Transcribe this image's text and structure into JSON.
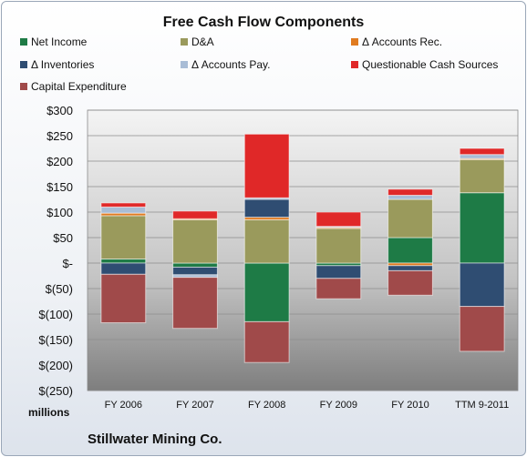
{
  "chart_data": {
    "type": "bar",
    "stacked": true,
    "title": "Free Cash Flow Components",
    "categories": [
      "FY 2006",
      "FY 2007",
      "FY 2008",
      "FY 2009",
      "FY 2010",
      "TTM 9-2011"
    ],
    "ylim": [
      -250,
      300
    ],
    "yticks": [
      -250,
      -200,
      -150,
      -100,
      -50,
      0,
      50,
      100,
      150,
      200,
      250,
      300
    ],
    "ytick_labels": [
      "$(250)",
      "$(200)",
      "$(150)",
      "$(100)",
      "$(50)",
      "$-",
      "$50",
      "$100",
      "$150",
      "$200",
      "$250",
      "$300"
    ],
    "units_label": "millions",
    "grid": true,
    "legend_position": "top",
    "series": [
      {
        "name": "Net Income",
        "color": "#1e7b46",
        "values": [
          8,
          -8,
          -115,
          -5,
          50,
          138
        ]
      },
      {
        "name": "D&A",
        "color": "#9a9a5c",
        "values": [
          85,
          85,
          85,
          68,
          75,
          65
        ]
      },
      {
        "name": "Δ Accounts Rec.",
        "color": "#e07b20",
        "values": [
          5,
          2,
          5,
          2,
          -5,
          2
        ]
      },
      {
        "name": "Δ Inventories",
        "color": "#2f4d72",
        "values": [
          -22,
          -15,
          35,
          -25,
          -10,
          -85
        ]
      },
      {
        "name": "Δ Accounts Pay.",
        "color": "#a9bdd6",
        "values": [
          12,
          -5,
          3,
          2,
          8,
          8
        ]
      },
      {
        "name": "Questionable Cash Sources",
        "color": "#e02828",
        "values": [
          8,
          15,
          125,
          28,
          12,
          12
        ]
      },
      {
        "name": "Capital Expenditure",
        "color": "#a04a4a",
        "values": [
          -95,
          -100,
          -80,
          -40,
          -48,
          -88
        ]
      }
    ]
  },
  "footer": {
    "company": "Stillwater Mining Co."
  }
}
